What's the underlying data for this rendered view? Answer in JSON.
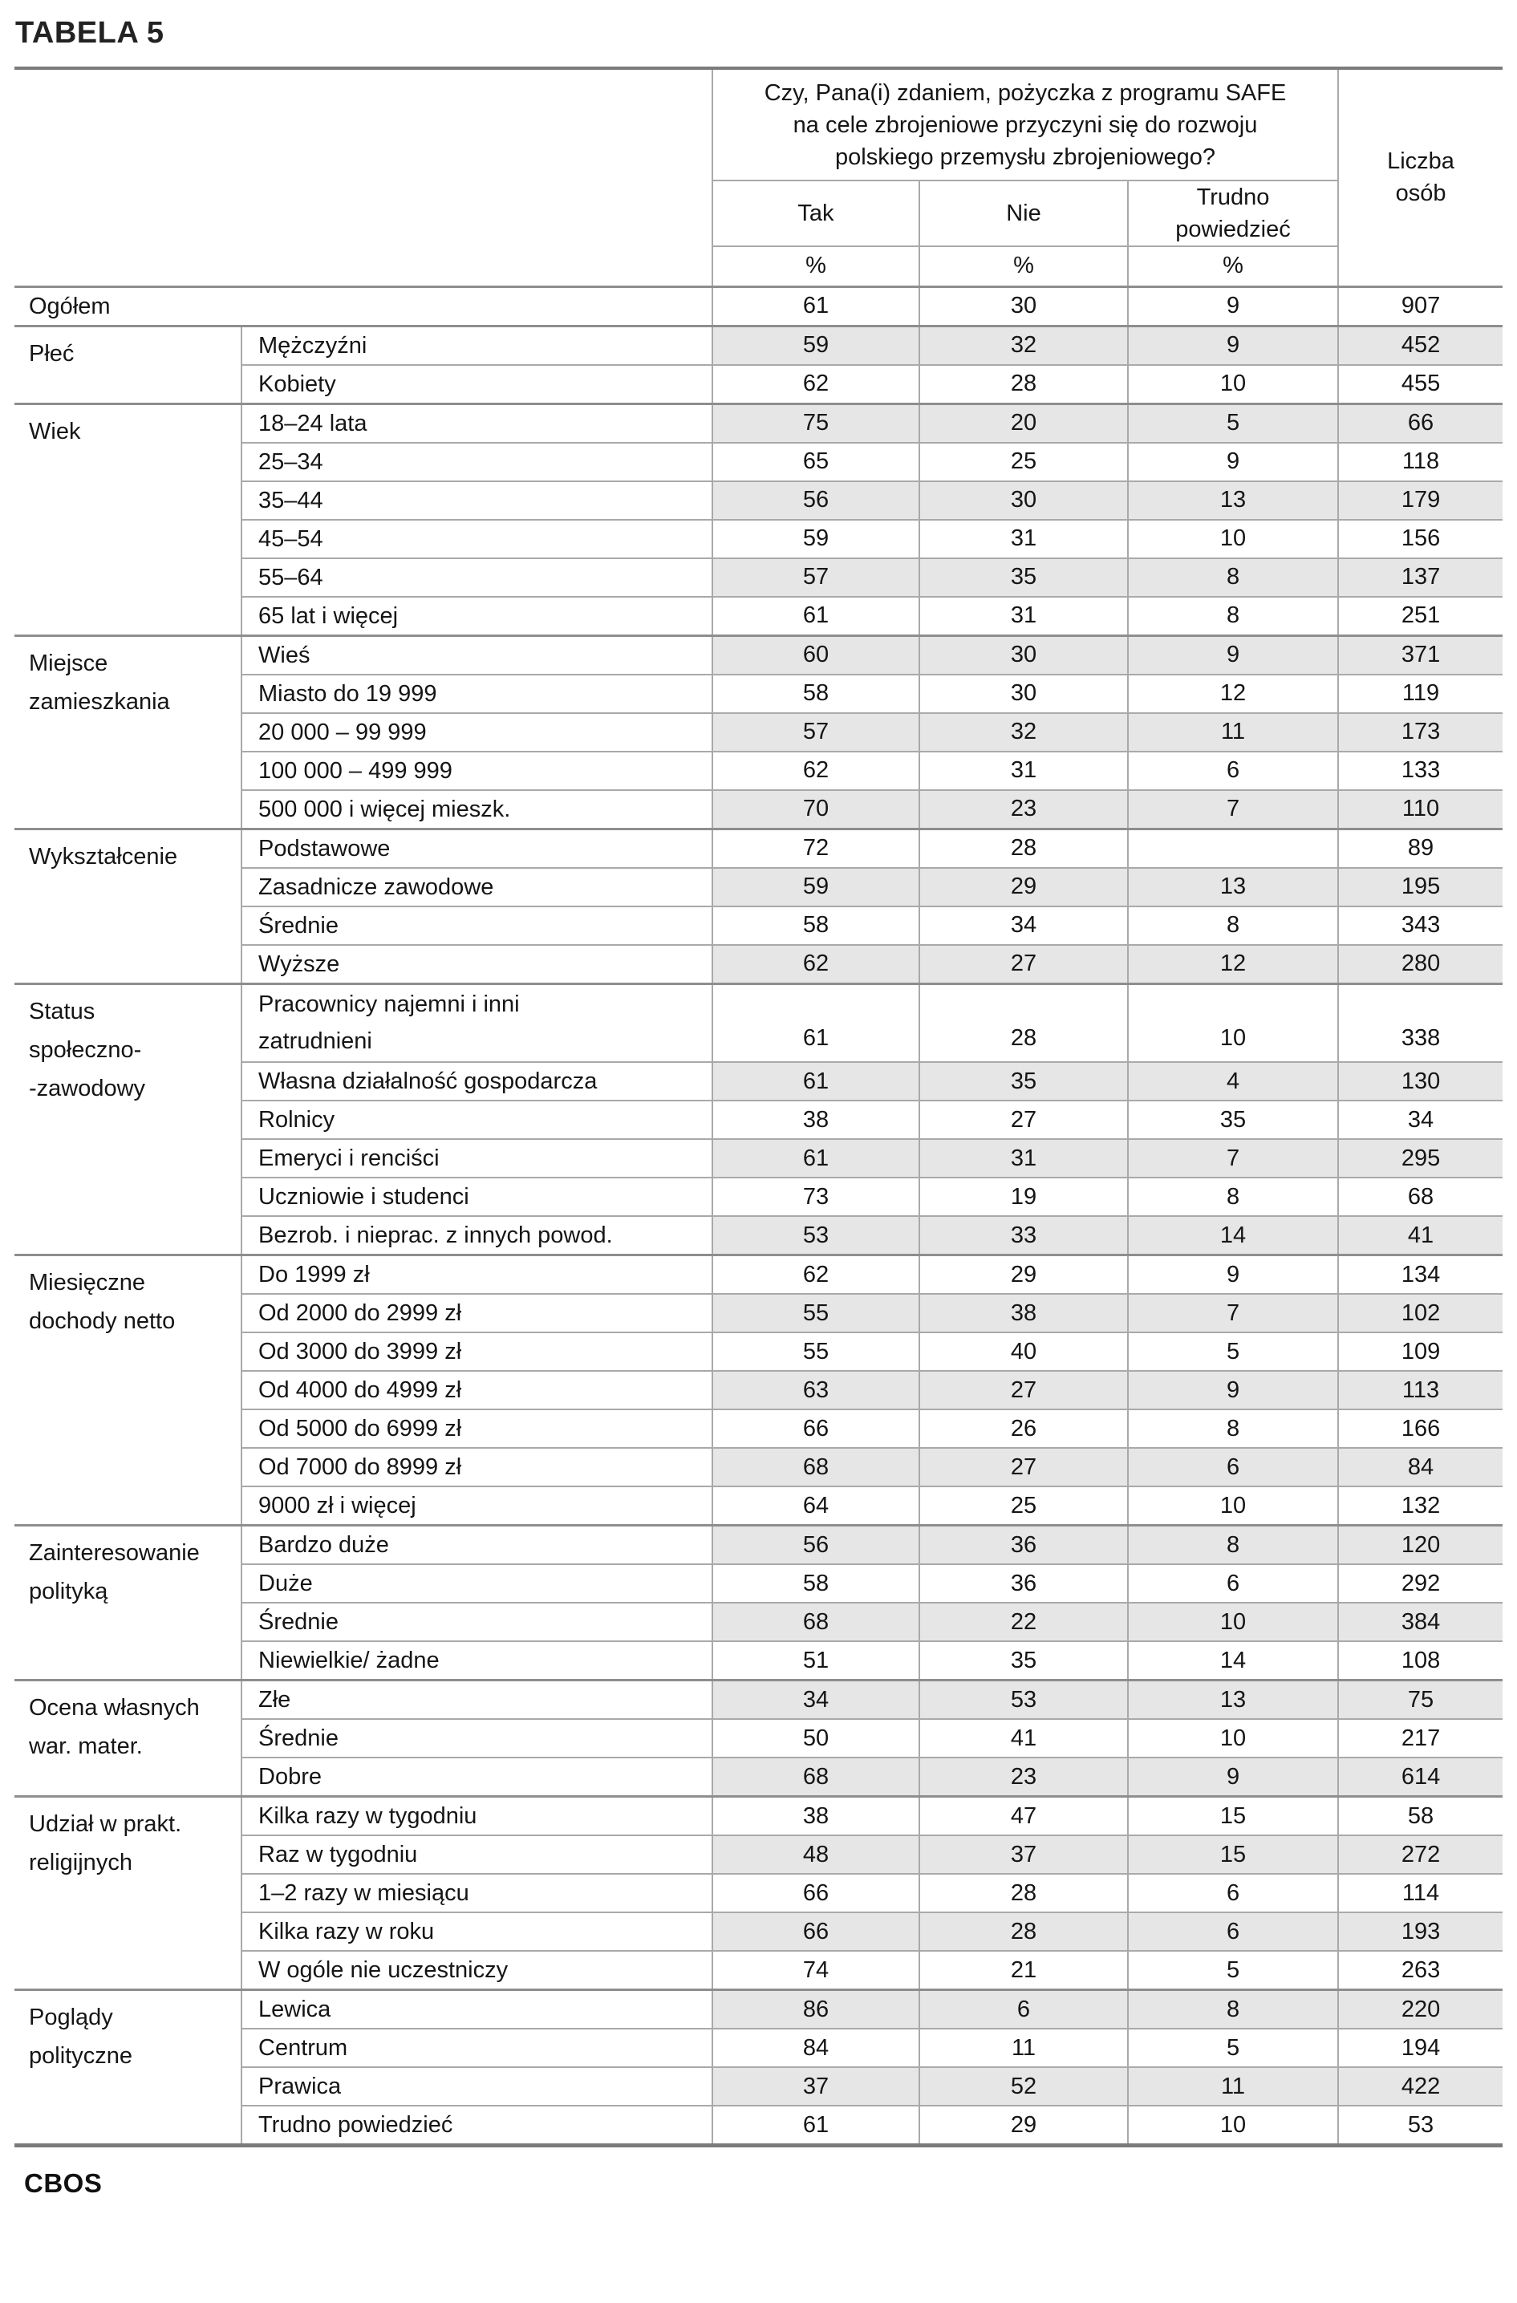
{
  "page": {
    "title": "TABELA 5",
    "footer_logo": "CBOS"
  },
  "colors": {
    "shade": "#e6e6e6",
    "line-light": "#a9a9a9",
    "line-medium": "#8e8e8e",
    "line-heavy": "#7b7b7b",
    "text": "#151515"
  },
  "table": {
    "question": "Czy, Pana(i) zdaniem, pożyczka z programu SAFE\nna cele zbrojeniowe przyczyni się do rozwoju\npolskiego przemysłu zbrojeniowego?",
    "answers": [
      "Tak",
      "Nie",
      "Trudno\npowiedzieć"
    ],
    "percent_symbol": "%",
    "count_header": "Liczba\nosób",
    "groups": [
      {
        "label": "",
        "merge_label": true,
        "rows": [
          {
            "category": "Ogółem",
            "values": [
              "61",
              "30",
              "9",
              "907"
            ],
            "shaded": false
          }
        ]
      },
      {
        "label": "Płeć",
        "rows": [
          {
            "category": "Mężczyźni",
            "values": [
              "59",
              "32",
              "9",
              "452"
            ],
            "shaded": true
          },
          {
            "category": "Kobiety",
            "values": [
              "62",
              "28",
              "10",
              "455"
            ],
            "shaded": false
          }
        ]
      },
      {
        "label": "Wiek",
        "rows": [
          {
            "category": "18–24 lata",
            "values": [
              "75",
              "20",
              "5",
              "66"
            ],
            "shaded": true
          },
          {
            "category": "25–34",
            "values": [
              "65",
              "25",
              "9",
              "118"
            ],
            "shaded": false
          },
          {
            "category": "35–44",
            "values": [
              "56",
              "30",
              "13",
              "179"
            ],
            "shaded": true
          },
          {
            "category": "45–54",
            "values": [
              "59",
              "31",
              "10",
              "156"
            ],
            "shaded": false
          },
          {
            "category": "55–64",
            "values": [
              "57",
              "35",
              "8",
              "137"
            ],
            "shaded": true
          },
          {
            "category": "65 lat i więcej",
            "values": [
              "61",
              "31",
              "8",
              "251"
            ],
            "shaded": false
          }
        ]
      },
      {
        "label": "Miejsce\nzamieszkania",
        "rows": [
          {
            "category": "Wieś",
            "values": [
              "60",
              "30",
              "9",
              "371"
            ],
            "shaded": true
          },
          {
            "category": "Miasto do 19 999",
            "values": [
              "58",
              "30",
              "12",
              "119"
            ],
            "shaded": false
          },
          {
            "category": "20 000 – 99 999",
            "values": [
              "57",
              "32",
              "11",
              "173"
            ],
            "shaded": true
          },
          {
            "category": "100 000 – 499 999",
            "values": [
              "62",
              "31",
              "6",
              "133"
            ],
            "shaded": false
          },
          {
            "category": "500 000 i więcej mieszk.",
            "values": [
              "70",
              "23",
              "7",
              "110"
            ],
            "shaded": true
          }
        ]
      },
      {
        "label": "Wykształcenie",
        "rows": [
          {
            "category": "Podstawowe",
            "values": [
              "72",
              "28",
              "",
              "89"
            ],
            "shaded": false
          },
          {
            "category": "Zasadnicze zawodowe",
            "values": [
              "59",
              "29",
              "13",
              "195"
            ],
            "shaded": true
          },
          {
            "category": "Średnie",
            "values": [
              "58",
              "34",
              "8",
              "343"
            ],
            "shaded": false
          },
          {
            "category": "Wyższe",
            "values": [
              "62",
              "27",
              "12",
              "280"
            ],
            "shaded": true
          }
        ]
      },
      {
        "label": "Status\nspołeczno-\n-zawodowy",
        "rows": [
          {
            "category": "Pracownicy najemni i inni\nzatrudnieni",
            "values": [
              "61",
              "28",
              "10",
              "338"
            ],
            "shaded": false,
            "tall": true
          },
          {
            "category": "Własna działalność gospodarcza",
            "values": [
              "61",
              "35",
              "4",
              "130"
            ],
            "shaded": true
          },
          {
            "category": "Rolnicy",
            "values": [
              "38",
              "27",
              "35",
              "34"
            ],
            "shaded": false
          },
          {
            "category": "Emeryci i renciści",
            "values": [
              "61",
              "31",
              "7",
              "295"
            ],
            "shaded": true
          },
          {
            "category": "Uczniowie i studenci",
            "values": [
              "73",
              "19",
              "8",
              "68"
            ],
            "shaded": false
          },
          {
            "category": "Bezrob. i nieprac. z innych powod.",
            "values": [
              "53",
              "33",
              "14",
              "41"
            ],
            "shaded": true
          }
        ]
      },
      {
        "label": "Miesięczne\ndochody netto",
        "rows": [
          {
            "category": "Do 1999 zł",
            "values": [
              "62",
              "29",
              "9",
              "134"
            ],
            "shaded": false
          },
          {
            "category": "Od 2000 do 2999 zł",
            "values": [
              "55",
              "38",
              "7",
              "102"
            ],
            "shaded": true
          },
          {
            "category": "Od 3000 do 3999 zł",
            "values": [
              "55",
              "40",
              "5",
              "109"
            ],
            "shaded": false
          },
          {
            "category": "Od 4000 do 4999 zł",
            "values": [
              "63",
              "27",
              "9",
              "113"
            ],
            "shaded": true
          },
          {
            "category": "Od 5000 do 6999 zł",
            "values": [
              "66",
              "26",
              "8",
              "166"
            ],
            "shaded": false
          },
          {
            "category": "Od 7000 do 8999 zł",
            "values": [
              "68",
              "27",
              "6",
              "84"
            ],
            "shaded": true
          },
          {
            "category": "9000 zł i więcej",
            "values": [
              "64",
              "25",
              "10",
              "132"
            ],
            "shaded": false
          }
        ]
      },
      {
        "label": "Zainteresowanie\npolityką",
        "rows": [
          {
            "category": "Bardzo duże",
            "values": [
              "56",
              "36",
              "8",
              "120"
            ],
            "shaded": true
          },
          {
            "category": "Duże",
            "values": [
              "58",
              "36",
              "6",
              "292"
            ],
            "shaded": false
          },
          {
            "category": "Średnie",
            "values": [
              "68",
              "22",
              "10",
              "384"
            ],
            "shaded": true
          },
          {
            "category": "Niewielkie/ żadne",
            "values": [
              "51",
              "35",
              "14",
              "108"
            ],
            "shaded": false
          }
        ]
      },
      {
        "label": "Ocena własnych\nwar. mater.",
        "rows": [
          {
            "category": "Złe",
            "values": [
              "34",
              "53",
              "13",
              "75"
            ],
            "shaded": true
          },
          {
            "category": "Średnie",
            "values": [
              "50",
              "41",
              "10",
              "217"
            ],
            "shaded": false
          },
          {
            "category": "Dobre",
            "values": [
              "68",
              "23",
              "9",
              "614"
            ],
            "shaded": true
          }
        ]
      },
      {
        "label": "Udział w prakt.\nreligijnych",
        "rows": [
          {
            "category": "Kilka razy w tygodniu",
            "values": [
              "38",
              "47",
              "15",
              "58"
            ],
            "shaded": false
          },
          {
            "category": "Raz w tygodniu",
            "values": [
              "48",
              "37",
              "15",
              "272"
            ],
            "shaded": true
          },
          {
            "category": "1–2 razy w miesiącu",
            "values": [
              "66",
              "28",
              "6",
              "114"
            ],
            "shaded": false
          },
          {
            "category": "Kilka razy w roku",
            "values": [
              "66",
              "28",
              "6",
              "193"
            ],
            "shaded": true
          },
          {
            "category": "W ogóle nie uczestniczy",
            "values": [
              "74",
              "21",
              "5",
              "263"
            ],
            "shaded": false
          }
        ]
      },
      {
        "label": "Poglądy\npolityczne",
        "rows": [
          {
            "category": "Lewica",
            "values": [
              "86",
              "6",
              "8",
              "220"
            ],
            "shaded": true
          },
          {
            "category": "Centrum",
            "values": [
              "84",
              "11",
              "5",
              "194"
            ],
            "shaded": false
          },
          {
            "category": "Prawica",
            "values": [
              "37",
              "52",
              "11",
              "422"
            ],
            "shaded": true
          },
          {
            "category": "Trudno powiedzieć",
            "values": [
              "61",
              "29",
              "10",
              "53"
            ],
            "shaded": false
          }
        ]
      }
    ]
  }
}
